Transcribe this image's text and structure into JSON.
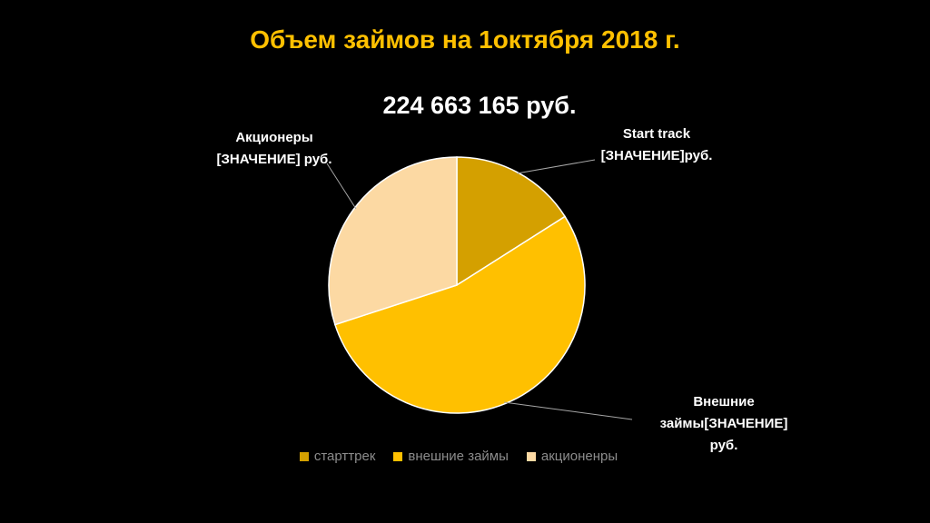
{
  "chart_data": {
    "type": "pie",
    "title": "Объем займов на 1октября 2018 г.",
    "subtitle": "224 663 165 руб.",
    "categories": [
      "старттрек",
      "внешние займы",
      "акционенры"
    ],
    "values": [
      16,
      54,
      30
    ],
    "colors": [
      "#D4A000",
      "#FFC000",
      "#FCD9A3"
    ],
    "data_labels": [
      [
        "Start track",
        "[ЗНАЧЕНИЕ]руб."
      ],
      [
        "Внешние",
        "займы[ЗНАЧЕНИЕ]",
        "руб."
      ],
      [
        "Акционеры",
        "[ЗНАЧЕНИЕ] руб."
      ]
    ],
    "legend": "bottom"
  }
}
